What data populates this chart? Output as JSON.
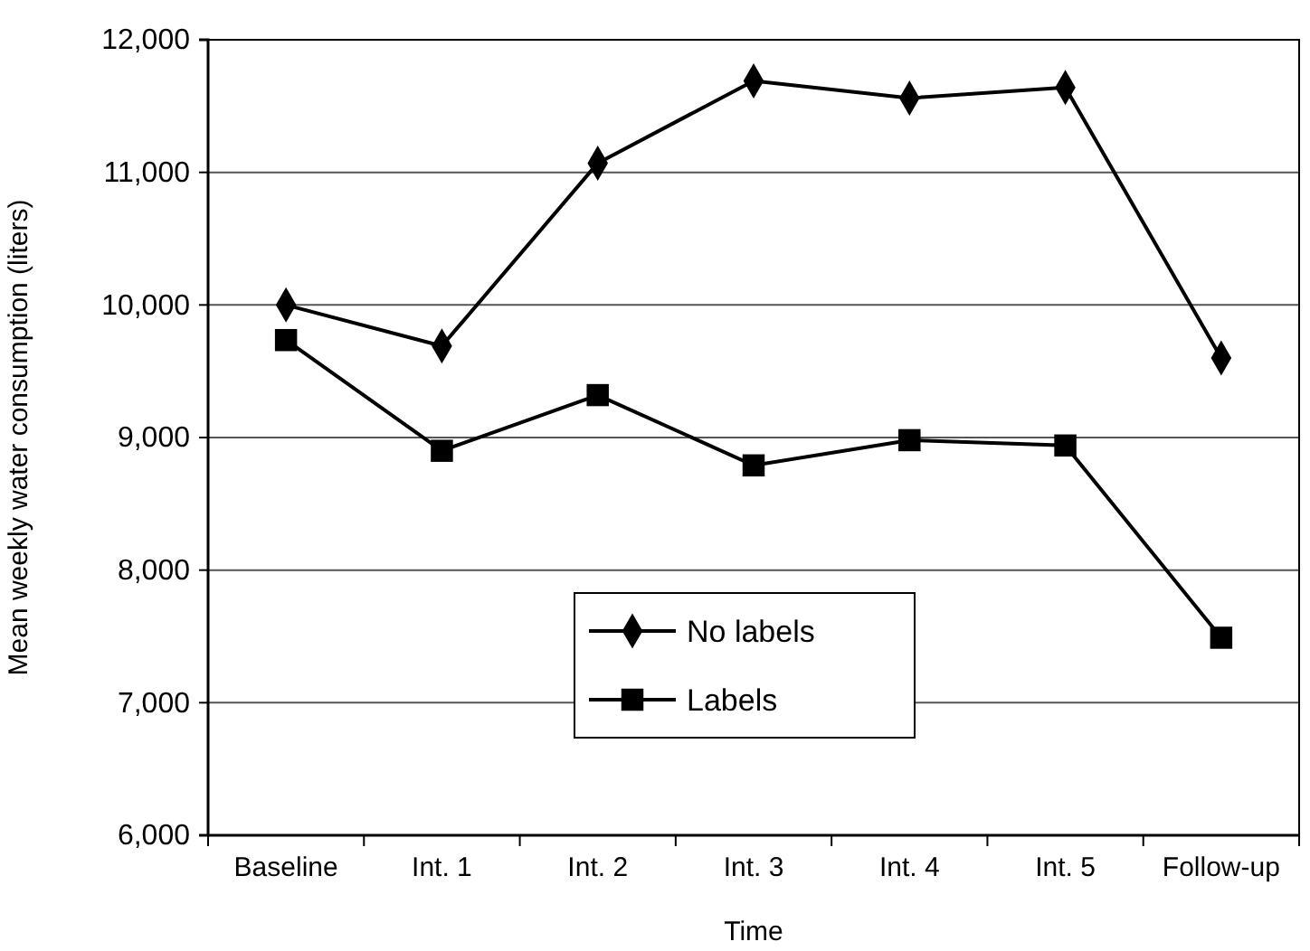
{
  "chart_data": {
    "type": "line",
    "xlabel": "Time",
    "ylabel": "Mean weekly water consumption (liters)",
    "categories": [
      "Baseline",
      "Int. 1",
      "Int. 2",
      "Int. 3",
      "Int. 4",
      "Int. 5",
      "Follow-up"
    ],
    "series": [
      {
        "name": "No labels",
        "color": "#000000",
        "marker": "diamond",
        "values": [
          10000,
          9690,
          11070,
          11690,
          11560,
          11640,
          9600
        ]
      },
      {
        "name": "Labels",
        "color": "#000000",
        "marker": "square",
        "values": [
          9735,
          8900,
          9320,
          8790,
          8980,
          8940,
          7490
        ]
      }
    ],
    "ylim": [
      6000,
      12000
    ],
    "yticks": [
      {
        "value": 6000,
        "label": "6,000"
      },
      {
        "value": 7000,
        "label": "7,000"
      },
      {
        "value": 8000,
        "label": "8,000"
      },
      {
        "value": 9000,
        "label": "9,000"
      },
      {
        "value": 10000,
        "label": "10,000"
      },
      {
        "value": 11000,
        "label": "11,000"
      },
      {
        "value": 12000,
        "label": "12,000"
      }
    ],
    "grid": "y",
    "legend": "bottom",
    "line_style": "solid"
  }
}
